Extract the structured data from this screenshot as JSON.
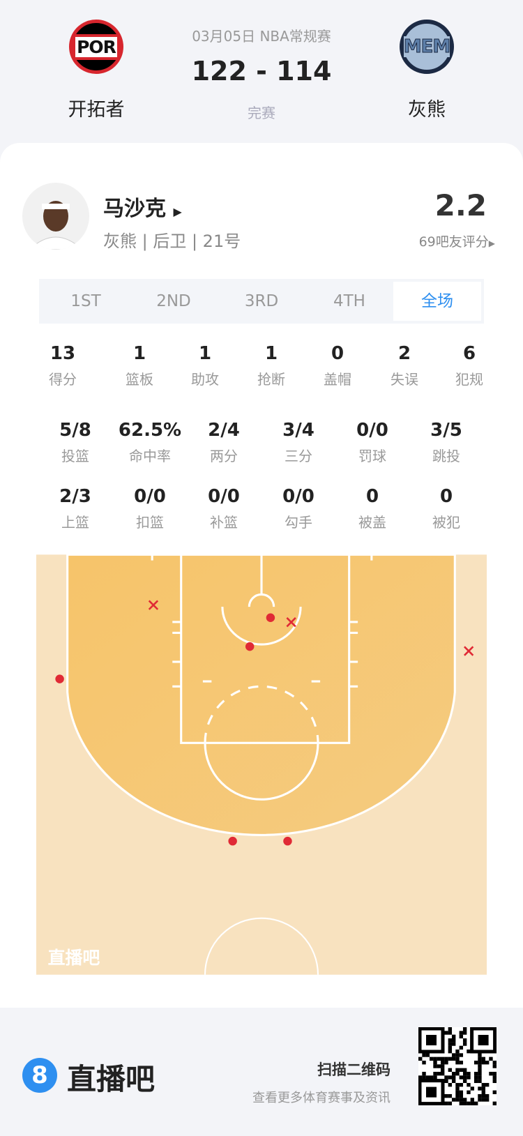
{
  "header": {
    "date_league": "03月05日 NBA常规赛",
    "score": "122 - 114",
    "status": "完赛",
    "home": {
      "name": "开拓者",
      "abbr": "POR"
    },
    "away": {
      "name": "灰熊",
      "abbr": "MEM"
    }
  },
  "player": {
    "name": "马沙克",
    "info": "灰熊 | 后卫 | 21号",
    "rating": "2.2",
    "rating_label": "69吧友评分"
  },
  "tabs": [
    {
      "label": "1ST"
    },
    {
      "label": "2ND"
    },
    {
      "label": "3RD"
    },
    {
      "label": "4TH"
    },
    {
      "label": "全场",
      "active": true
    }
  ],
  "stats_row1": [
    {
      "v": "13",
      "l": "得分"
    },
    {
      "v": "1",
      "l": "篮板"
    },
    {
      "v": "1",
      "l": "助攻"
    },
    {
      "v": "1",
      "l": "抢断"
    },
    {
      "v": "0",
      "l": "盖帽"
    },
    {
      "v": "2",
      "l": "失误"
    },
    {
      "v": "6",
      "l": "犯规"
    }
  ],
  "stats_row2": [
    {
      "v": "5/8",
      "l": "投篮"
    },
    {
      "v": "62.5%",
      "l": "命中率"
    },
    {
      "v": "2/4",
      "l": "两分"
    },
    {
      "v": "3/4",
      "l": "三分"
    },
    {
      "v": "0/0",
      "l": "罚球"
    },
    {
      "v": "3/5",
      "l": "跳投"
    }
  ],
  "stats_row3": [
    {
      "v": "2/3",
      "l": "上篮"
    },
    {
      "v": "0/0",
      "l": "扣篮"
    },
    {
      "v": "0/0",
      "l": "补篮"
    },
    {
      "v": "0/0",
      "l": "勾手"
    },
    {
      "v": "0",
      "l": "被盖"
    },
    {
      "v": "0",
      "l": "被犯"
    }
  ],
  "shot_chart": {
    "units": "ft (x from basket center, y from baseline)",
    "watermark": "直播吧",
    "made": [
      [
        -22.4,
        13.8
      ],
      [
        -1.3,
        10.2
      ],
      [
        1.0,
        7.0
      ],
      [
        -3.2,
        31.8
      ],
      [
        2.9,
        31.8
      ]
    ],
    "missed": [
      [
        -12.0,
        5.6
      ],
      [
        3.3,
        7.5
      ],
      [
        23.0,
        10.7
      ]
    ],
    "colors": {
      "shot": "#e02a35",
      "paint": "#f4c46a",
      "outer": "#f8e2bf"
    }
  },
  "footer": {
    "brand": "直播吧",
    "brand_badge": "8",
    "scan_title": "扫描二维码",
    "scan_sub": "查看更多体育赛事及资讯"
  },
  "colors": {
    "accent": "#2e8ff0"
  }
}
